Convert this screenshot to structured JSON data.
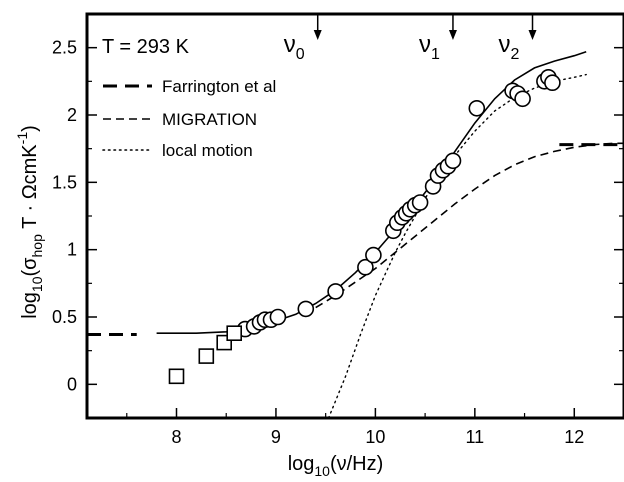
{
  "chart_data": {
    "type": "scatter",
    "xlabel": {
      "base": "log",
      "sub": "10",
      "rest": "(ν/Hz)"
    },
    "ylabel": {
      "p1": "log",
      "s1": "10",
      "p2": "(σ",
      "s2": "hop",
      "p3": " T · ΩcmK",
      "sup": "-1",
      "p4": ")"
    },
    "annotation": "T = 293 K",
    "xlim": [
      7.1,
      12.5
    ],
    "ylim": [
      -0.25,
      2.75
    ],
    "xticks": [
      8,
      9,
      10,
      11,
      12
    ],
    "xtick_labels": [
      "8",
      "9",
      "10",
      "11",
      "12"
    ],
    "yticks": [
      0,
      0.5,
      1,
      1.5,
      2,
      2.5
    ],
    "ytick_labels": [
      "0",
      "0.5",
      "1",
      "1.5",
      "2",
      "2.5"
    ],
    "frequency_markers": [
      {
        "label": "ν",
        "sub": "0",
        "x": 9.42
      },
      {
        "label": "ν",
        "sub": "1",
        "x": 10.78
      },
      {
        "label": "ν",
        "sub": "2",
        "x": 11.58
      }
    ],
    "legend": [
      {
        "label": "Farrington et al",
        "style": "long-dash"
      },
      {
        "label": "MIGRATION",
        "style": "dash"
      },
      {
        "label": "local motion",
        "style": "dot"
      }
    ],
    "farrington_low_level": {
      "x": [
        7.1,
        7.6
      ],
      "y": 0.37
    },
    "farrington_high_level": {
      "x": [
        11.85,
        12.5
      ],
      "y": 1.78
    },
    "series": [
      {
        "marker": "circle",
        "x": [
          8.69,
          8.78,
          8.84,
          8.89,
          8.95,
          9.02,
          9.3,
          9.6,
          9.9,
          9.98,
          10.18,
          10.22,
          10.27,
          10.31,
          10.35,
          10.4,
          10.45,
          10.58,
          10.63,
          10.68,
          10.73,
          10.78,
          11.02,
          11.38,
          11.43,
          11.48,
          11.7,
          11.74,
          11.78
        ],
        "y": [
          0.41,
          0.43,
          0.46,
          0.48,
          0.48,
          0.5,
          0.56,
          0.69,
          0.87,
          0.96,
          1.14,
          1.2,
          1.24,
          1.27,
          1.3,
          1.33,
          1.35,
          1.47,
          1.55,
          1.59,
          1.62,
          1.66,
          2.05,
          2.18,
          2.16,
          2.12,
          2.25,
          2.28,
          2.24
        ]
      },
      {
        "marker": "square",
        "x": [
          8.0,
          8.3,
          8.48,
          8.58
        ],
        "y": [
          0.06,
          0.21,
          0.31,
          0.38
        ]
      }
    ],
    "lines": [
      {
        "style": "solid",
        "x": [
          7.8,
          8.2,
          8.5,
          8.8,
          9.0,
          9.2,
          9.4,
          9.6,
          9.8,
          10.0,
          10.2,
          10.4,
          10.6,
          10.8,
          11.0,
          11.2,
          11.4,
          11.6,
          11.8,
          12.0,
          12.12
        ],
        "y": [
          0.38,
          0.38,
          0.39,
          0.42,
          0.47,
          0.52,
          0.6,
          0.7,
          0.83,
          0.98,
          1.15,
          1.33,
          1.52,
          1.73,
          1.94,
          2.12,
          2.26,
          2.35,
          2.4,
          2.44,
          2.47
        ]
      },
      {
        "style": "dash",
        "x": [
          9.4,
          9.6,
          9.8,
          10.0,
          10.2,
          10.4,
          10.6,
          10.8,
          11.0,
          11.2,
          11.4,
          11.6,
          11.8,
          12.0,
          12.2,
          12.4,
          12.5
        ],
        "y": [
          0.57,
          0.66,
          0.76,
          0.86,
          0.98,
          1.1,
          1.22,
          1.34,
          1.45,
          1.55,
          1.63,
          1.69,
          1.73,
          1.76,
          1.78,
          1.79,
          1.79
        ]
      },
      {
        "style": "dot",
        "x": [
          9.53,
          9.7,
          9.85,
          10.0,
          10.1,
          10.2,
          10.3,
          10.4,
          10.5,
          10.6,
          10.8,
          11.0,
          11.2,
          11.4,
          11.6,
          11.8,
          12.0,
          12.12
        ],
        "y": [
          -0.25,
          0.06,
          0.37,
          0.66,
          0.82,
          0.98,
          1.12,
          1.25,
          1.38,
          1.5,
          1.7,
          1.88,
          2.03,
          2.13,
          2.2,
          2.25,
          2.28,
          2.3
        ]
      }
    ]
  }
}
